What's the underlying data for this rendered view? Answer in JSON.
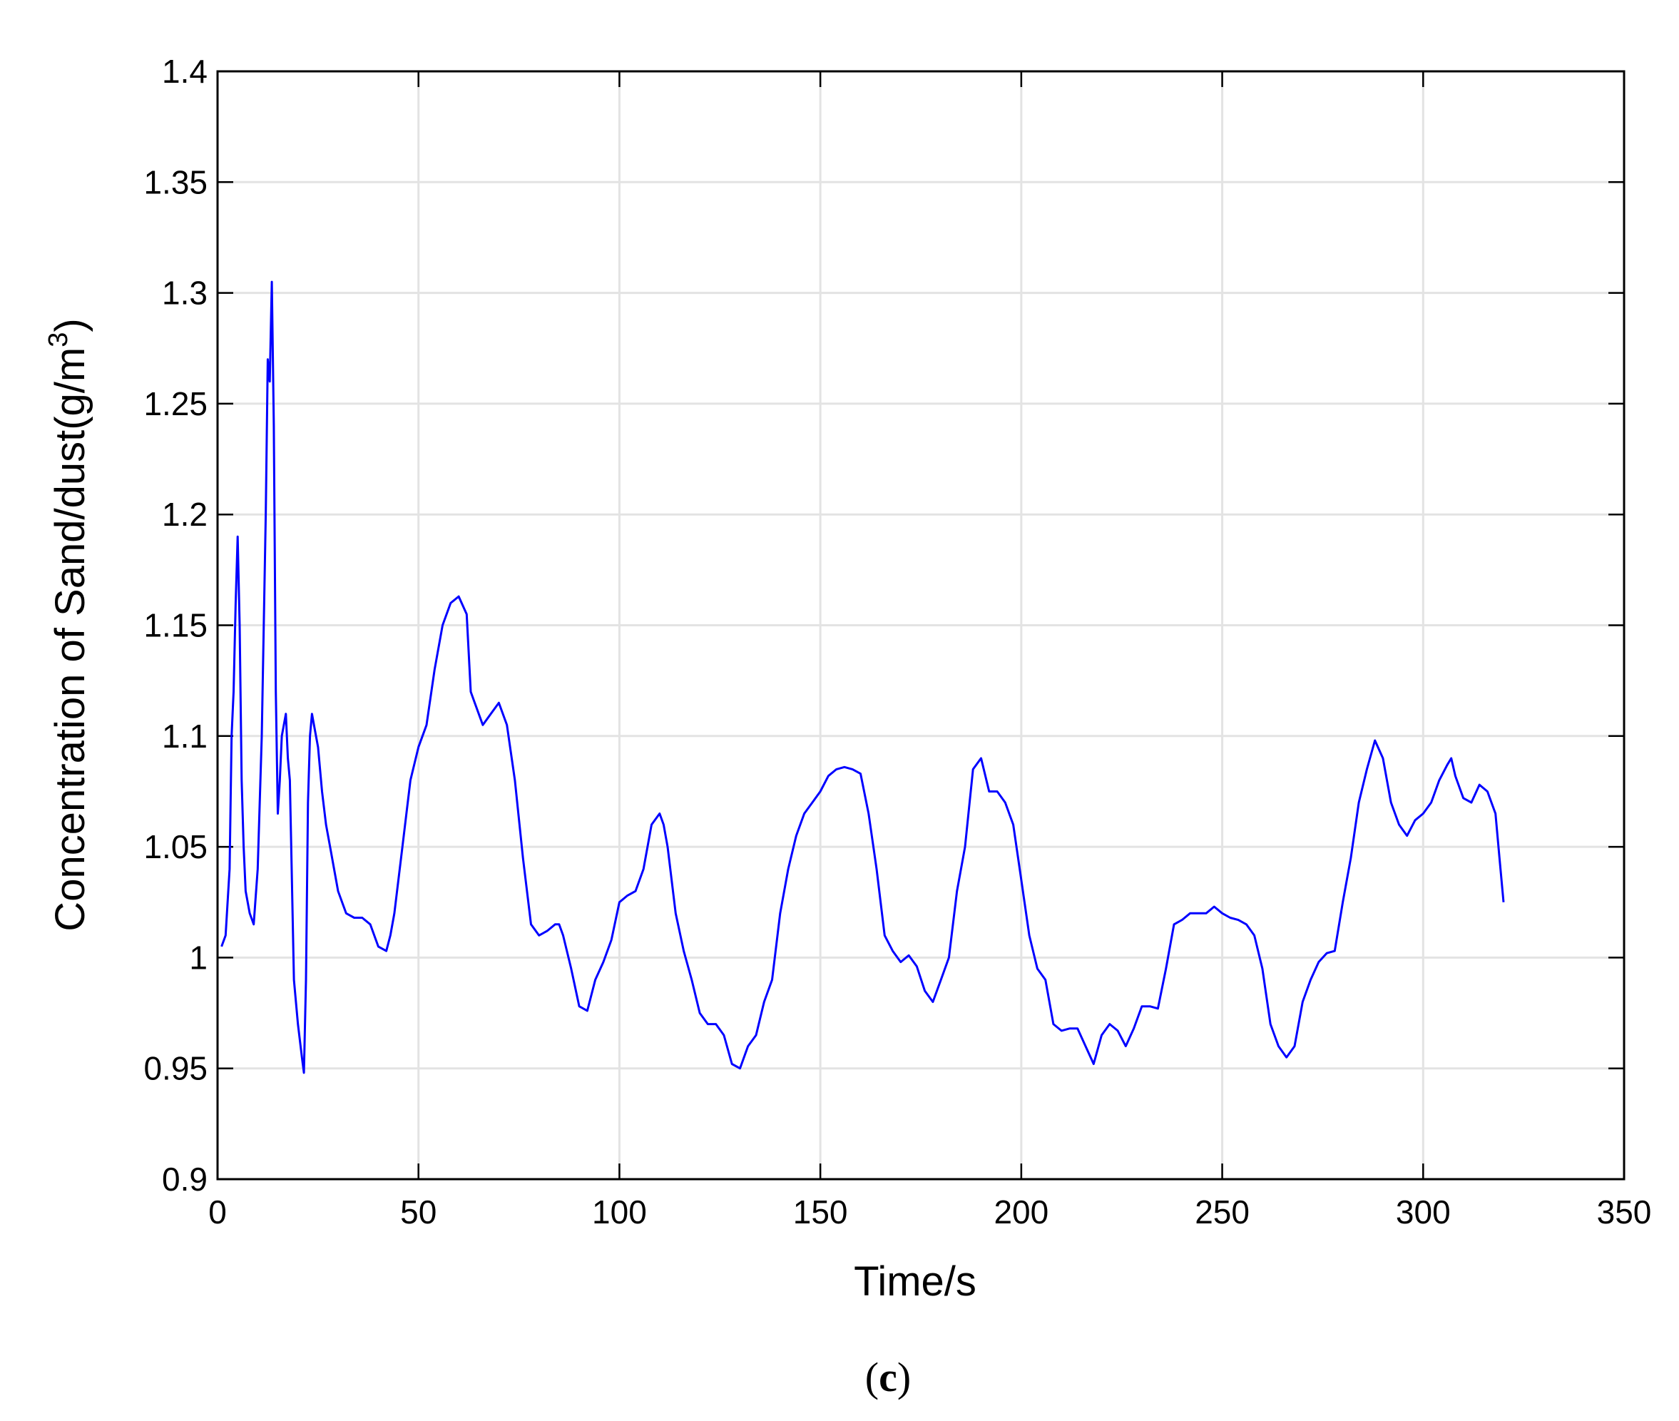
{
  "chart_data": {
    "type": "line",
    "title": "",
    "xlabel": "Time/s",
    "ylabel": "Concentration of Sand/dust(g/m",
    "ylabel_superscript": "3",
    "ylabel_close": ")",
    "caption_open": "(",
    "caption_letter": "c",
    "caption_close": ")",
    "xlim": [
      0,
      350
    ],
    "ylim": [
      0.9,
      1.4
    ],
    "grid": true,
    "xticks": [
      0,
      50,
      100,
      150,
      200,
      250,
      300,
      350
    ],
    "xtick_labels": [
      "0",
      "50",
      "100",
      "150",
      "200",
      "250",
      "300",
      "350"
    ],
    "yticks": [
      0.9,
      0.95,
      1.0,
      1.05,
      1.1,
      1.15,
      1.2,
      1.25,
      1.3,
      1.35,
      1.4
    ],
    "ytick_labels": [
      "0.9",
      "0.95",
      "1",
      "1.05",
      "1.1",
      "1.15",
      "1.2",
      "1.25",
      "1.3",
      "1.35",
      "1.4"
    ],
    "line_color": "#0000ff",
    "series": [
      {
        "x": [
          1,
          2,
          3,
          3.5,
          4,
          4.5,
          5,
          5.5,
          6,
          6.5,
          7,
          8,
          9,
          10,
          11,
          12,
          12.5,
          13,
          13.5,
          14,
          14.5,
          15,
          15.5,
          16,
          17,
          17.5,
          18,
          19,
          20,
          21,
          21.5,
          22,
          22.5,
          23,
          23.5,
          24,
          25,
          26,
          27,
          28,
          29,
          30,
          32,
          34,
          36,
          38,
          40,
          42,
          43,
          44,
          46,
          48,
          50,
          52,
          54,
          56,
          58,
          60,
          62,
          63,
          64,
          66,
          68,
          70,
          72,
          74,
          76,
          78,
          80,
          82,
          84,
          85,
          86,
          88,
          90,
          92,
          94,
          96,
          98,
          100,
          102,
          104,
          106,
          108,
          110,
          111,
          112,
          114,
          116,
          118,
          120,
          122,
          124,
          126,
          128,
          130,
          132,
          134,
          136,
          138,
          140,
          142,
          144,
          146,
          148,
          150,
          152,
          154,
          156,
          158,
          160,
          162,
          164,
          166,
          168,
          170,
          172,
          174,
          176,
          178,
          180,
          182,
          184,
          186,
          188,
          190,
          192,
          194,
          196,
          198,
          200,
          202,
          204,
          206,
          208,
          210,
          212,
          214,
          216,
          218,
          220,
          222,
          224,
          226,
          228,
          230,
          232,
          234,
          236,
          238,
          240,
          242,
          244,
          246,
          248,
          250,
          252,
          254,
          256,
          258,
          260,
          262,
          264,
          266,
          268,
          270,
          272,
          274,
          276,
          278,
          280,
          282,
          284,
          286,
          288,
          290,
          292,
          294,
          296,
          298,
          300,
          302,
          304,
          306,
          307,
          308,
          310,
          312,
          314,
          316,
          318,
          319,
          320
        ],
        "y": [
          1.005,
          1.01,
          1.04,
          1.1,
          1.12,
          1.16,
          1.19,
          1.15,
          1.08,
          1.05,
          1.03,
          1.02,
          1.015,
          1.04,
          1.1,
          1.2,
          1.27,
          1.26,
          1.305,
          1.24,
          1.12,
          1.065,
          1.08,
          1.1,
          1.11,
          1.09,
          1.08,
          0.99,
          0.97,
          0.955,
          0.948,
          0.99,
          1.07,
          1.1,
          1.11,
          1.105,
          1.095,
          1.075,
          1.06,
          1.05,
          1.04,
          1.03,
          1.02,
          1.018,
          1.018,
          1.015,
          1.005,
          1.003,
          1.01,
          1.02,
          1.05,
          1.08,
          1.095,
          1.105,
          1.13,
          1.15,
          1.16,
          1.163,
          1.155,
          1.12,
          1.115,
          1.105,
          1.11,
          1.115,
          1.105,
          1.08,
          1.045,
          1.015,
          1.01,
          1.012,
          1.015,
          1.015,
          1.01,
          0.995,
          0.978,
          0.976,
          0.99,
          0.998,
          1.008,
          1.025,
          1.028,
          1.03,
          1.04,
          1.06,
          1.065,
          1.06,
          1.05,
          1.02,
          1.003,
          0.99,
          0.975,
          0.97,
          0.97,
          0.965,
          0.952,
          0.95,
          0.96,
          0.965,
          0.98,
          0.99,
          1.02,
          1.04,
          1.055,
          1.065,
          1.07,
          1.075,
          1.082,
          1.085,
          1.086,
          1.085,
          1.083,
          1.065,
          1.04,
          1.01,
          1.003,
          0.998,
          1.001,
          0.996,
          0.985,
          0.98,
          0.99,
          1.0,
          1.03,
          1.05,
          1.085,
          1.09,
          1.075,
          1.075,
          1.07,
          1.06,
          1.035,
          1.01,
          0.995,
          0.99,
          0.97,
          0.967,
          0.968,
          0.968,
          0.96,
          0.952,
          0.965,
          0.97,
          0.967,
          0.96,
          0.968,
          0.978,
          0.978,
          0.977,
          0.995,
          1.015,
          1.017,
          1.02,
          1.02,
          1.02,
          1.023,
          1.02,
          1.018,
          1.017,
          1.015,
          1.01,
          0.995,
          0.97,
          0.96,
          0.955,
          0.96,
          0.98,
          0.99,
          0.998,
          1.002,
          1.003,
          1.025,
          1.045,
          1.07,
          1.085,
          1.098,
          1.09,
          1.07,
          1.06,
          1.055,
          1.062,
          1.065,
          1.07,
          1.08,
          1.087,
          1.09,
          1.082,
          1.072,
          1.07,
          1.078,
          1.075,
          1.065,
          1.045,
          1.025
        ]
      }
    ]
  }
}
